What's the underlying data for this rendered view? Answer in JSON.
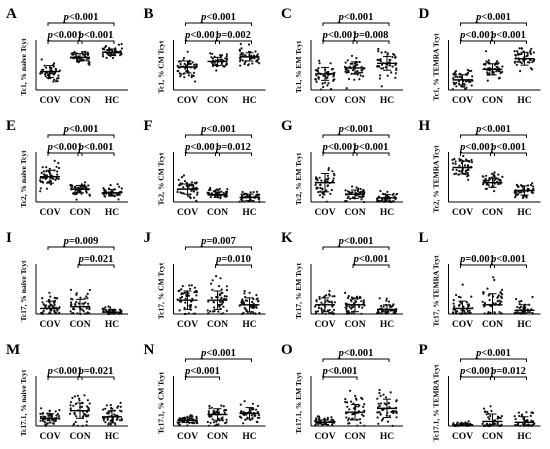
{
  "chart_data": [
    {
      "panel": "A",
      "type": "scatter",
      "ylabel": "Tc1, % naive Tcyt",
      "categories": [
        "COV",
        "CON",
        "HC"
      ],
      "mean": [
        40,
        71,
        82
      ],
      "sd": [
        13,
        8,
        7
      ],
      "ylim": [
        0,
        100
      ],
      "brackets": [
        {
          "from": 0,
          "to": 2,
          "label": "p<0.001"
        },
        {
          "from": 0,
          "to": 1,
          "label": "p<0.001"
        },
        {
          "from": 1,
          "to": 2,
          "label": "p<0.001"
        }
      ]
    },
    {
      "panel": "B",
      "type": "scatter",
      "ylabel": "Tc1, % CM Tcyt",
      "categories": [
        "COV",
        "CON",
        "HC"
      ],
      "mean": [
        50,
        62,
        72
      ],
      "sd": [
        13,
        9,
        9
      ],
      "ylim": [
        0,
        100
      ],
      "brackets": [
        {
          "from": 0,
          "to": 2,
          "label": "p<0.001"
        },
        {
          "from": 0,
          "to": 1,
          "label": "p<0.001"
        },
        {
          "from": 1,
          "to": 2,
          "label": "p=0.002"
        }
      ]
    },
    {
      "panel": "C",
      "type": "scatter",
      "ylabel": "Tc1, % EM Tcyt",
      "categories": [
        "COV",
        "CON",
        "HC"
      ],
      "mean": [
        35,
        48,
        58
      ],
      "sd": [
        14,
        13,
        15
      ],
      "ylim": [
        0,
        100
      ],
      "brackets": [
        {
          "from": 0,
          "to": 2,
          "label": "p<0.001"
        },
        {
          "from": 0,
          "to": 1,
          "label": "p<0.001"
        },
        {
          "from": 1,
          "to": 2,
          "label": "p=0.008"
        }
      ]
    },
    {
      "panel": "D",
      "type": "scatter",
      "ylabel": "Tc1, % TEMRA Tcyt",
      "categories": [
        "COV",
        "CON",
        "HC"
      ],
      "mean": [
        22,
        45,
        68
      ],
      "sd": [
        11,
        12,
        14
      ],
      "ylim": [
        0,
        100
      ],
      "brackets": [
        {
          "from": 0,
          "to": 2,
          "label": "p<0.001"
        },
        {
          "from": 0,
          "to": 1,
          "label": "p<0.001"
        },
        {
          "from": 1,
          "to": 2,
          "label": "p<0.001"
        }
      ]
    },
    {
      "panel": "E",
      "type": "scatter",
      "ylabel": "Tc2, % naive Tcyt",
      "categories": [
        "COV",
        "CON",
        "HC"
      ],
      "mean": [
        55,
        28,
        20
      ],
      "sd": [
        14,
        8,
        7
      ],
      "ylim": [
        0,
        100
      ],
      "brackets": [
        {
          "from": 0,
          "to": 2,
          "label": "p<0.001"
        },
        {
          "from": 0,
          "to": 1,
          "label": "p<0.001"
        },
        {
          "from": 1,
          "to": 2,
          "label": "p<0.001"
        }
      ]
    },
    {
      "panel": "F",
      "type": "scatter",
      "ylabel": "Tc2, % CM Tcyt",
      "categories": [
        "COV",
        "CON",
        "HC"
      ],
      "mean": [
        28,
        16,
        10
      ],
      "sd": [
        11,
        6,
        7
      ],
      "ylim": [
        0,
        100
      ],
      "brackets": [
        {
          "from": 0,
          "to": 2,
          "label": "p<0.001"
        },
        {
          "from": 0,
          "to": 1,
          "label": "p<0.001"
        },
        {
          "from": 1,
          "to": 2,
          "label": "p=0.012"
        }
      ]
    },
    {
      "panel": "G",
      "type": "scatter",
      "ylabel": "Tc2, % EM Tcyt",
      "categories": [
        "COV",
        "CON",
        "HC"
      ],
      "mean": [
        42,
        17,
        9
      ],
      "sd": [
        20,
        9,
        7
      ],
      "ylim": [
        0,
        100
      ],
      "brackets": [
        {
          "from": 0,
          "to": 2,
          "label": "p<0.001"
        },
        {
          "from": 0,
          "to": 1,
          "label": "p<0.001"
        },
        {
          "from": 1,
          "to": 2,
          "label": "p<0.001"
        }
      ]
    },
    {
      "panel": "H",
      "type": "scatter",
      "ylabel": "Tc2, % TEMRA Tcyt",
      "categories": [
        "COV",
        "CON",
        "HC"
      ],
      "mean": [
        75,
        42,
        25
      ],
      "sd": [
        14,
        10,
        10
      ],
      "ylim": [
        0,
        100
      ],
      "brackets": [
        {
          "from": 0,
          "to": 2,
          "label": "p<0.001"
        },
        {
          "from": 0,
          "to": 1,
          "label": "p<0.001"
        },
        {
          "from": 1,
          "to": 2,
          "label": "p<0.001"
        }
      ]
    },
    {
      "panel": "I",
      "type": "scatter",
      "ylabel": "Tc17, % naive Tcyt",
      "categories": [
        "COV",
        "CON",
        "HC"
      ],
      "mean": [
        3,
        4,
        1
      ],
      "sd": [
        4,
        4,
        1.5
      ],
      "ylim": [
        0,
        25
      ],
      "brackets": [
        {
          "from": 0,
          "to": 2,
          "label": "p=0.009"
        },
        {
          "from": 1,
          "to": 2,
          "label": "p=0.021"
        }
      ]
    },
    {
      "panel": "J",
      "type": "scatter",
      "ylabel": "Tc17, % CM Tcyt",
      "categories": [
        "COV",
        "CON",
        "HC"
      ],
      "mean": [
        3,
        3,
        2
      ],
      "sd": [
        2,
        2,
        1.5
      ],
      "ylim": [
        0,
        10
      ],
      "brackets": [
        {
          "from": 0,
          "to": 2,
          "label": "p=0.007"
        },
        {
          "from": 1,
          "to": 2,
          "label": "p=0.010"
        }
      ]
    },
    {
      "panel": "K",
      "type": "scatter",
      "ylabel": "Tc17, % EM Tcyt",
      "categories": [
        "COV",
        "CON",
        "HC"
      ],
      "mean": [
        8,
        8,
        4
      ],
      "sd": [
        6,
        6,
        4
      ],
      "ylim": [
        0,
        40
      ],
      "brackets": [
        {
          "from": 0,
          "to": 2,
          "label": "p<0.001"
        },
        {
          "from": 1,
          "to": 2,
          "label": "p<0.001"
        }
      ]
    },
    {
      "panel": "L",
      "type": "scatter",
      "ylabel": "Tc17, % TEMRA Tcyt",
      "categories": [
        "COV",
        "CON",
        "HC"
      ],
      "mean": [
        3,
        5,
        2
      ],
      "sd": [
        4,
        6,
        3
      ],
      "ylim": [
        0,
        25
      ],
      "brackets": [
        {
          "from": 0,
          "to": 1,
          "label": "p=0.001"
        },
        {
          "from": 1,
          "to": 2,
          "label": "p<0.001"
        }
      ]
    },
    {
      "panel": "M",
      "type": "scatter",
      "ylabel": "Tc17.1, % naive Tcyt",
      "categories": [
        "COV",
        "CON",
        "HC"
      ],
      "mean": [
        5,
        10,
        6
      ],
      "sd": [
        3,
        5,
        4
      ],
      "ylim": [
        0,
        30
      ],
      "brackets": [
        {
          "from": 0,
          "to": 1,
          "label": "p<0.001"
        },
        {
          "from": 1,
          "to": 2,
          "label": "p=0.021"
        }
      ]
    },
    {
      "panel": "N",
      "type": "scatter",
      "ylabel": "Tc17.1, % CM Tcyt",
      "categories": [
        "COV",
        "CON",
        "HC"
      ],
      "mean": [
        5,
        10,
        11
      ],
      "sd": [
        2,
        5,
        5
      ],
      "ylim": [
        0,
        40
      ],
      "brackets": [
        {
          "from": 0,
          "to": 2,
          "label": "p<0.001"
        },
        {
          "from": 0,
          "to": 1,
          "label": "p<0.001"
        }
      ]
    },
    {
      "panel": "O",
      "type": "scatter",
      "ylabel": "Tc17.1, % EM Tcyt",
      "categories": [
        "COV",
        "CON",
        "HC"
      ],
      "mean": [
        5,
        18,
        23
      ],
      "sd": [
        3,
        10,
        12
      ],
      "ylim": [
        0,
        60
      ],
      "brackets": [
        {
          "from": 0,
          "to": 2,
          "label": "p<0.001"
        },
        {
          "from": 0,
          "to": 1,
          "label": "p<0.001"
        }
      ]
    },
    {
      "panel": "P",
      "type": "scatter",
      "ylabel": "Tc17.1, % TEMRA Tcyt",
      "categories": [
        "COV",
        "CON",
        "HC"
      ],
      "mean": [
        1,
        5,
        4
      ],
      "sd": [
        2,
        8,
        6
      ],
      "ylim": [
        0,
        50
      ],
      "brackets": [
        {
          "from": 0,
          "to": 2,
          "label": "p<0.001"
        },
        {
          "from": 0,
          "to": 1,
          "label": "p<0.001"
        },
        {
          "from": 1,
          "to": 2,
          "label": "p=0.012"
        }
      ]
    }
  ]
}
